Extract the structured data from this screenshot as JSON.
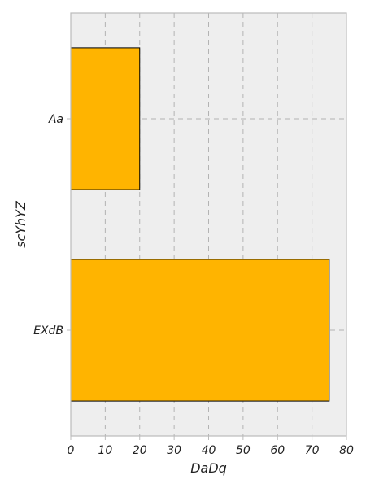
{
  "chart_data": {
    "type": "bar",
    "orientation": "horizontal",
    "title": "",
    "xlabel": "DaDq",
    "ylabel": "scYhYZ",
    "categories": [
      "Aa",
      "EXdB"
    ],
    "values": [
      20,
      75
    ],
    "xlim": [
      0,
      80
    ],
    "xticks": [
      0,
      10,
      20,
      30,
      40,
      50,
      60,
      70,
      80
    ],
    "grid": true,
    "colors": {
      "bar": "#FFB400",
      "bar_edge": "#000000",
      "plot_background": "#EEEEEE",
      "grid": "#B3B3B3",
      "frame": "#BBBBBB"
    }
  }
}
